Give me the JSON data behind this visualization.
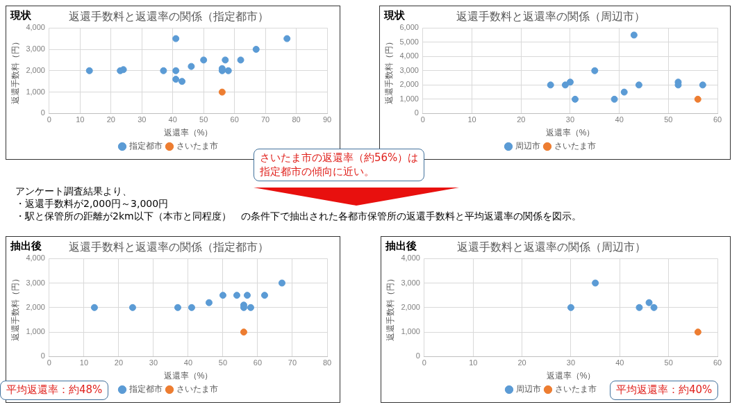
{
  "chart_data": [
    {
      "type": "scatter",
      "title": "返還手数料と返還率の関係（指定都市）",
      "subtitle": "現状",
      "xlabel": "返還率（%）",
      "ylabel": "返還手数料（円）",
      "xlim": [
        0,
        90
      ],
      "xticks": [
        0,
        10,
        20,
        30,
        40,
        50,
        60,
        70,
        80,
        90
      ],
      "ylim": [
        0,
        4000
      ],
      "yticks": [
        {
          "value": 0,
          "label": "0"
        },
        {
          "value": 1000,
          "label": "1,000"
        },
        {
          "value": 2000,
          "label": "2,000"
        },
        {
          "value": 3000,
          "label": "3,000"
        },
        {
          "value": 4000,
          "label": "4,000"
        }
      ],
      "grid": true,
      "legend": "bottom",
      "marker": "circle",
      "annotations": [
        "さいたま市の返還率（約56%）は",
        "指定都市の傾向に近い。"
      ],
      "series": [
        {
          "name": "指定都市",
          "color": "#5b9bd5",
          "x": [
            13,
            23,
            24,
            37,
            41,
            41,
            41,
            43,
            46,
            50,
            56,
            56,
            57,
            58,
            62,
            67,
            77
          ],
          "values": [
            2000,
            2000,
            2050,
            2000,
            3500,
            2000,
            1600,
            1500,
            2200,
            2500,
            2100,
            2000,
            2500,
            2000,
            2500,
            3000,
            3500
          ]
        },
        {
          "name": "さいたま市",
          "color": "#ed7d31",
          "x": [
            56
          ],
          "values": [
            1000
          ]
        }
      ]
    },
    {
      "type": "scatter",
      "title": "返還手数料と返還率の関係（周辺市）",
      "subtitle": "現状",
      "xlabel": "返還率（%）",
      "ylabel": "返還手数料（円）",
      "xlim": [
        0,
        60
      ],
      "xticks": [
        0,
        10,
        20,
        30,
        40,
        50,
        60
      ],
      "ylim": [
        0,
        6000
      ],
      "yticks": [
        {
          "value": 0,
          "label": "0"
        },
        {
          "value": 1000,
          "label": "1,000"
        },
        {
          "value": 2000,
          "label": "2,000"
        },
        {
          "value": 3000,
          "label": "3,000"
        },
        {
          "value": 4000,
          "label": "4,000"
        },
        {
          "value": 5000,
          "label": "5,000"
        },
        {
          "value": 6000,
          "label": "6,000"
        }
      ],
      "grid": true,
      "legend": "bottom",
      "marker": "circle",
      "series": [
        {
          "name": "周辺市",
          "color": "#5b9bd5",
          "x": [
            26,
            29,
            30,
            31,
            35,
            39,
            41,
            43,
            44,
            52,
            52,
            57
          ],
          "values": [
            2000,
            2000,
            2200,
            1000,
            3000,
            1000,
            1500,
            5500,
            2000,
            2200,
            2000,
            2000
          ]
        },
        {
          "name": "さいたま市",
          "color": "#ed7d31",
          "x": [
            56
          ],
          "values": [
            1000
          ]
        }
      ]
    },
    {
      "type": "scatter",
      "title": "返還手数料と返還率の関係（指定都市）",
      "subtitle": "抽出後",
      "xlabel": "返還率（%）",
      "ylabel": "返還手数料（円）",
      "xlim": [
        0,
        80
      ],
      "xticks": [
        0,
        10,
        20,
        30,
        40,
        50,
        60,
        70,
        80
      ],
      "ylim": [
        0,
        4000
      ],
      "yticks": [
        {
          "value": 0,
          "label": "0"
        },
        {
          "value": 1000,
          "label": "1,000"
        },
        {
          "value": 2000,
          "label": "2,000"
        },
        {
          "value": 3000,
          "label": "3,000"
        },
        {
          "value": 4000,
          "label": "4,000"
        }
      ],
      "grid": true,
      "legend": "bottom",
      "marker": "circle",
      "annotations": [
        "アンケート調査結果より、",
        "・返還手数料が2,000円～3,000円",
        "・駅と保管所の距離が2km以下（本市と同程度）　の条件下で抽出された各都市保管所の返還手数料と平均返還率の関係を図示。",
        "平均返還率：約48%"
      ],
      "series": [
        {
          "name": "指定都市",
          "color": "#5b9bd5",
          "x": [
            13,
            24,
            37,
            41,
            46,
            50,
            54,
            56,
            56,
            57,
            58,
            62,
            67
          ],
          "values": [
            2000,
            2000,
            2000,
            2000,
            2200,
            2500,
            2500,
            2100,
            2000,
            2500,
            2000,
            2500,
            3000
          ]
        },
        {
          "name": "さいたま市",
          "color": "#ed7d31",
          "x": [
            56
          ],
          "values": [
            1000
          ]
        }
      ]
    },
    {
      "type": "scatter",
      "title": "返還手数料と返還率の関係（周辺市）",
      "subtitle": "抽出後",
      "xlabel": "返還率（%）",
      "ylabel": "返還手数料（円）",
      "xlim": [
        0,
        60
      ],
      "xticks": [
        0,
        10,
        20,
        30,
        40,
        50,
        60
      ],
      "ylim": [
        0,
        4000
      ],
      "yticks": [
        {
          "value": 0,
          "label": "0"
        },
        {
          "value": 1000,
          "label": "1,000"
        },
        {
          "value": 2000,
          "label": "2,000"
        },
        {
          "value": 3000,
          "label": "3,000"
        },
        {
          "value": 4000,
          "label": "4,000"
        }
      ],
      "grid": true,
      "legend": "bottom",
      "marker": "circle",
      "annotations": [
        "平均返還率：約40%"
      ],
      "series": [
        {
          "name": "周辺市",
          "color": "#5b9bd5",
          "x": [
            30,
            35,
            44,
            46,
            47
          ],
          "values": [
            2000,
            3000,
            2000,
            2200,
            2000
          ]
        },
        {
          "name": "さいたま市",
          "color": "#ed7d31",
          "x": [
            56
          ],
          "values": [
            1000
          ]
        }
      ]
    }
  ]
}
